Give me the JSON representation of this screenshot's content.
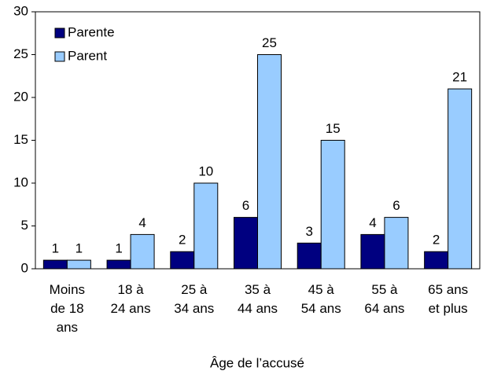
{
  "chart_data": {
    "type": "bar",
    "x_label": "Âge de l’accusé",
    "categories": [
      [
        "Moins",
        "de 18",
        "ans"
      ],
      [
        "18 à",
        "24 ans"
      ],
      [
        "25 à",
        "34 ans"
      ],
      [
        "35 à",
        "44 ans"
      ],
      [
        "45 à",
        "54 ans"
      ],
      [
        "55 à",
        "64 ans"
      ],
      [
        "65 ans",
        "et plus"
      ]
    ],
    "series": [
      {
        "name": "Parente",
        "color": "#000080",
        "values": [
          1,
          1,
          2,
          6,
          3,
          4,
          2
        ]
      },
      {
        "name": "Parent",
        "color": "#99ccff",
        "values": [
          1,
          4,
          10,
          25,
          15,
          6,
          21
        ]
      }
    ],
    "ylim": [
      0,
      30
    ],
    "yticks": [
      0,
      5,
      10,
      15,
      20,
      25,
      30
    ],
    "grid": false,
    "legend": "upper left"
  }
}
